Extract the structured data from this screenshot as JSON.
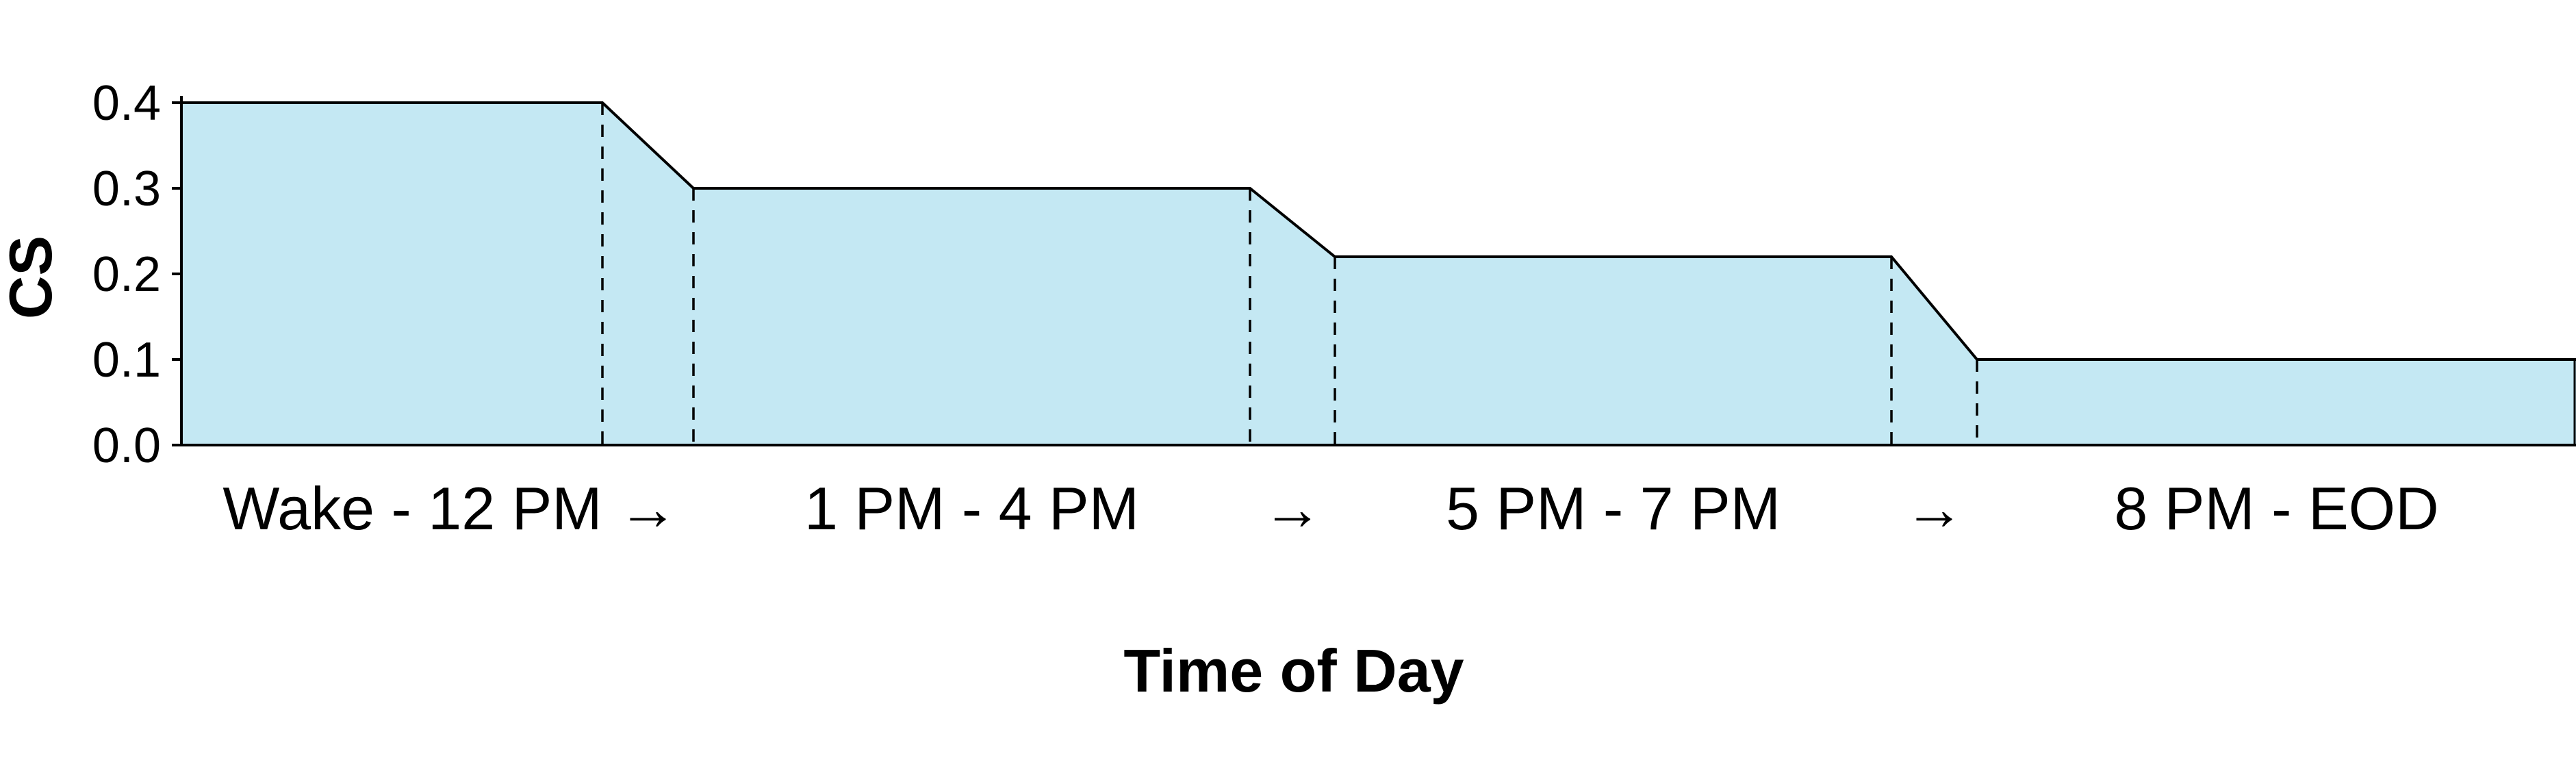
{
  "chart_data": {
    "type": "area",
    "title": "",
    "xlabel": "Time of Day",
    "ylabel": "CS",
    "ylim": [
      0.0,
      0.4
    ],
    "yticks": [
      "0.0",
      "0.1",
      "0.2",
      "0.3",
      "0.4"
    ],
    "grid": false,
    "legend": "none",
    "categories": [
      "Wake - 12 PM",
      "1 PM - 4 PM",
      "5 PM - 7 PM",
      "8 PM - EOD"
    ],
    "transition_labels": [
      "→",
      "→",
      "→"
    ],
    "values": [
      0.4,
      0.3,
      0.22,
      0.1
    ],
    "fill_color": "#c4e8f3",
    "line_color": "#000000"
  }
}
